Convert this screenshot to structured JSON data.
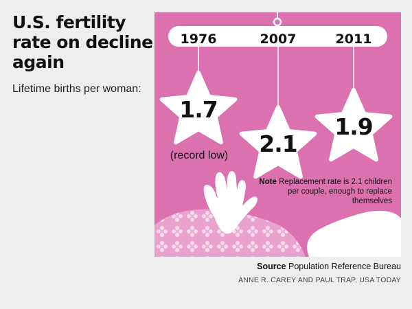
{
  "title": "U.S. fertility rate on decline again",
  "subtitle": "Lifetime births per woman:",
  "note": {
    "label": "Note",
    "text": "Replacement rate is 2.1 children per couple, enough to replace themselves"
  },
  "source": {
    "label": "Source",
    "text": "Population Reference Bureau"
  },
  "credit": "ANNE R. CAREY AND PAUL TRAP, USA TODAY",
  "colors": {
    "background": "#dc71b0",
    "star": "#ffffff",
    "pattern": "#f5c6e0"
  },
  "chart_data": {
    "type": "pictograph",
    "title": "U.S. fertility rate on decline again",
    "subtitle": "Lifetime births per woman:",
    "categories": [
      "1976",
      "2007",
      "2011"
    ],
    "values": [
      1.7,
      2.1,
      1.9
    ],
    "value_labels": [
      "1.7",
      "2.1",
      "1.9"
    ],
    "annotations": [
      {
        "category": "1976",
        "text": "(record low)"
      }
    ],
    "xlabel": "",
    "ylabel": ""
  }
}
